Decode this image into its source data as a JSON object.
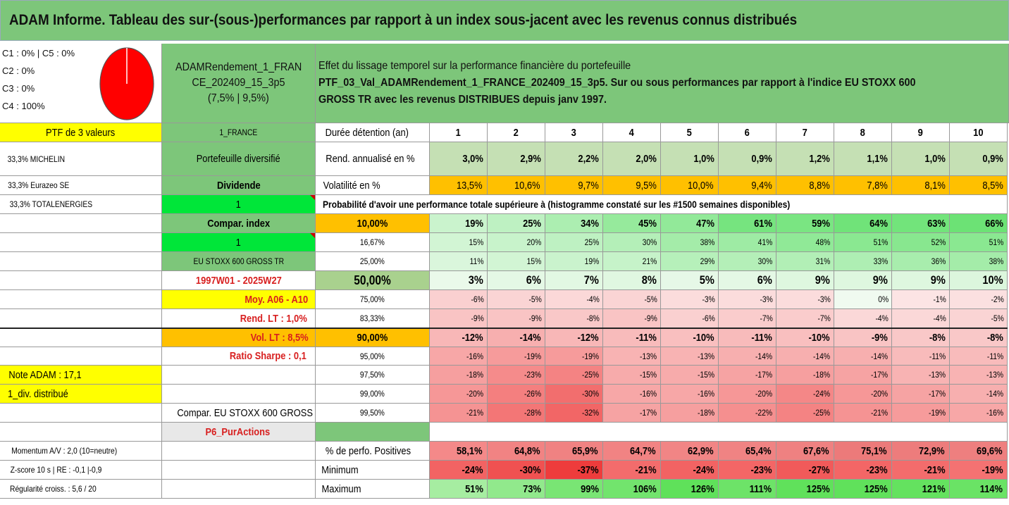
{
  "title": "ADAM Informe. Tableau des sur-(sous-)performances par rapport à un index sous-jacent avec les revenus connus distribués",
  "pie": {
    "lines": [
      "C1 : 0% | C5 : 0%",
      "C2 : 0%",
      "C3 : 0%",
      "C4 : 100%"
    ],
    "color": "#ff0000"
  },
  "fund": {
    "line1": "ADAMRendement_1_FRAN",
    "line2": "CE_202409_15_3p5",
    "line3": "(7,5% | 9,5%)"
  },
  "desc": {
    "line1": "Effet du lissage temporel sur la performance financière du portefeuille",
    "line2": "PTF_03_Val_ADAMRendement_1_FRANCE_202409_15_3p5. Sur ou sous performances par rapport à l'indice EU STOXX 600",
    "line3": "GROSS TR avec les revenus DISTRIBUES depuis janv 1997."
  },
  "left_col": [
    "PTF de 3 valeurs",
    "33,3% MICHELIN",
    "33,3% Eurazeo SE",
    "33,3% TOTALENERGIES",
    "",
    "",
    "",
    "",
    "",
    "",
    "",
    "",
    "Note ADAM : 17,1",
    "1_div. distribué",
    "",
    "",
    "Momentum A/V : 2,0 (10=neutre)",
    "Z-score 10 s | RE : -0,1 |-0,9",
    "Régularité croiss. : 5,6 / 20"
  ],
  "mid_col": [
    "1_FRANCE",
    "Portefeuille diversifié",
    "Dividende",
    "1",
    "Compar. index",
    "1",
    "EU STOXX 600 GROSS TR",
    "1997W01 - 2025W27",
    "Moy. A06 - A10",
    "Rend. LT : 1,0%",
    "Vol. LT : 8,5%",
    "Ratio Sharpe : 0,1",
    "",
    "",
    "Compar. EU STOXX 600 GROSS TR",
    "P6_PurActions",
    "",
    "",
    ""
  ],
  "row_labels": [
    "Durée détention (an)",
    "Rend. annualisé en %",
    "Volatilité en %",
    "Probabilité d'avoir une performance totale supérieure à (histogramme constaté sur les #1500 semaines disponibles)"
  ],
  "years": [
    "1",
    "2",
    "3",
    "4",
    "5",
    "6",
    "7",
    "8",
    "9",
    "10"
  ],
  "rend": [
    "3,0%",
    "2,9%",
    "2,2%",
    "2,0%",
    "1,0%",
    "0,9%",
    "1,2%",
    "1,1%",
    "1,0%",
    "0,9%"
  ],
  "vol": [
    "13,5%",
    "10,6%",
    "9,7%",
    "9,5%",
    "10,0%",
    "9,4%",
    "8,8%",
    "7,8%",
    "8,1%",
    "8,5%"
  ],
  "prob_rows": [
    {
      "label": "10,00%",
      "values": [
        "19%",
        "25%",
        "34%",
        "45%",
        "47%",
        "61%",
        "59%",
        "64%",
        "63%",
        "66%"
      ]
    },
    {
      "label": "16,67%",
      "values": [
        "15%",
        "20%",
        "25%",
        "30%",
        "38%",
        "41%",
        "48%",
        "51%",
        "52%",
        "51%"
      ]
    },
    {
      "label": "25,00%",
      "values": [
        "11%",
        "15%",
        "19%",
        "21%",
        "29%",
        "30%",
        "31%",
        "33%",
        "36%",
        "38%"
      ]
    },
    {
      "label": "50,00%",
      "values": [
        "3%",
        "6%",
        "7%",
        "8%",
        "5%",
        "6%",
        "9%",
        "9%",
        "9%",
        "10%"
      ]
    },
    {
      "label": "75,00%",
      "values": [
        "-6%",
        "-5%",
        "-4%",
        "-5%",
        "-3%",
        "-3%",
        "-3%",
        "0%",
        "-1%",
        "-2%"
      ]
    },
    {
      "label": "83,33%",
      "values": [
        "-9%",
        "-9%",
        "-8%",
        "-9%",
        "-6%",
        "-7%",
        "-7%",
        "-4%",
        "-4%",
        "-5%"
      ]
    },
    {
      "label": "90,00%",
      "values": [
        "-12%",
        "-14%",
        "-12%",
        "-11%",
        "-10%",
        "-11%",
        "-10%",
        "-9%",
        "-8%",
        "-8%"
      ]
    },
    {
      "label": "95,00%",
      "values": [
        "-16%",
        "-19%",
        "-19%",
        "-13%",
        "-13%",
        "-14%",
        "-14%",
        "-14%",
        "-11%",
        "-11%"
      ]
    },
    {
      "label": "97,50%",
      "values": [
        "-18%",
        "-23%",
        "-25%",
        "-15%",
        "-15%",
        "-17%",
        "-18%",
        "-17%",
        "-13%",
        "-13%"
      ]
    },
    {
      "label": "99,00%",
      "values": [
        "-20%",
        "-26%",
        "-30%",
        "-16%",
        "-16%",
        "-20%",
        "-24%",
        "-20%",
        "-17%",
        "-14%"
      ]
    },
    {
      "label": "99,50%",
      "values": [
        "-21%",
        "-28%",
        "-32%",
        "-17%",
        "-18%",
        "-22%",
        "-25%",
        "-21%",
        "-19%",
        "-16%"
      ]
    }
  ],
  "stats": [
    {
      "label": "% de perfo. Positives",
      "values": [
        "58,1%",
        "64,8%",
        "65,9%",
        "64,7%",
        "62,9%",
        "65,4%",
        "67,6%",
        "75,1%",
        "72,9%",
        "69,6%"
      ]
    },
    {
      "label": "Minimum",
      "values": [
        "-24%",
        "-30%",
        "-37%",
        "-21%",
        "-24%",
        "-23%",
        "-27%",
        "-23%",
        "-21%",
        "-19%"
      ]
    },
    {
      "label": "Maximum",
      "values": [
        "51%",
        "73%",
        "99%",
        "106%",
        "126%",
        "111%",
        "125%",
        "125%",
        "121%",
        "114%"
      ]
    }
  ]
}
